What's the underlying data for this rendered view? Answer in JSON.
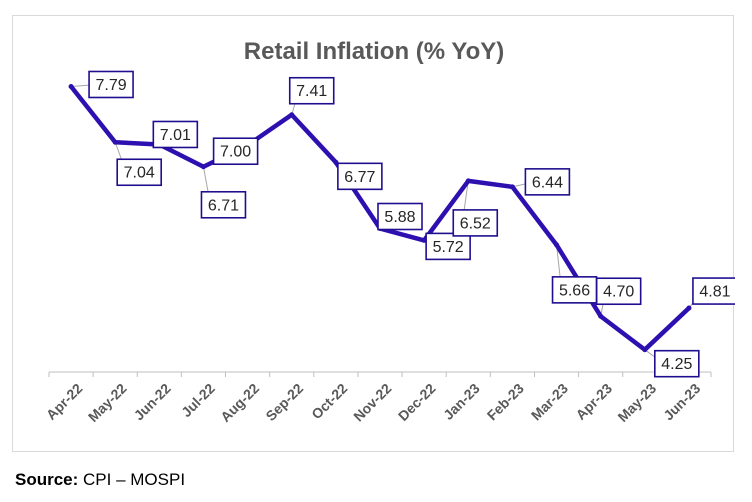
{
  "chart_data": {
    "type": "line",
    "title": "Retail Inflation (% YoY)",
    "xlabel": "",
    "ylabel": "",
    "categories": [
      "Apr-22",
      "May-22",
      "Jun-22",
      "Jul-22",
      "Aug-22",
      "Sep-22",
      "Oct-22",
      "Nov-22",
      "Dec-22",
      "Jan-23",
      "Feb-23",
      "Mar-23",
      "Apr-23",
      "May-23",
      "Jun-23"
    ],
    "series": [
      {
        "name": "Retail Inflation",
        "color": "#2E10B0",
        "values": [
          7.79,
          7.04,
          7.01,
          6.71,
          7.0,
          7.41,
          6.77,
          5.88,
          5.72,
          6.52,
          6.44,
          5.66,
          4.7,
          4.25,
          4.81
        ],
        "labels": [
          "7.79",
          "7.04",
          "7.01",
          "6.71",
          "7.00",
          "7.41",
          "6.77",
          "5.88",
          "5.72",
          "6.52",
          "6.44",
          "5.66",
          "4.70",
          "4.25",
          "4.81"
        ]
      }
    ],
    "ylim": [
      3.95,
      8.2
    ],
    "grid": false,
    "legend": "none"
  },
  "source": {
    "label": "Source:",
    "text": " CPI – MOSPI"
  }
}
